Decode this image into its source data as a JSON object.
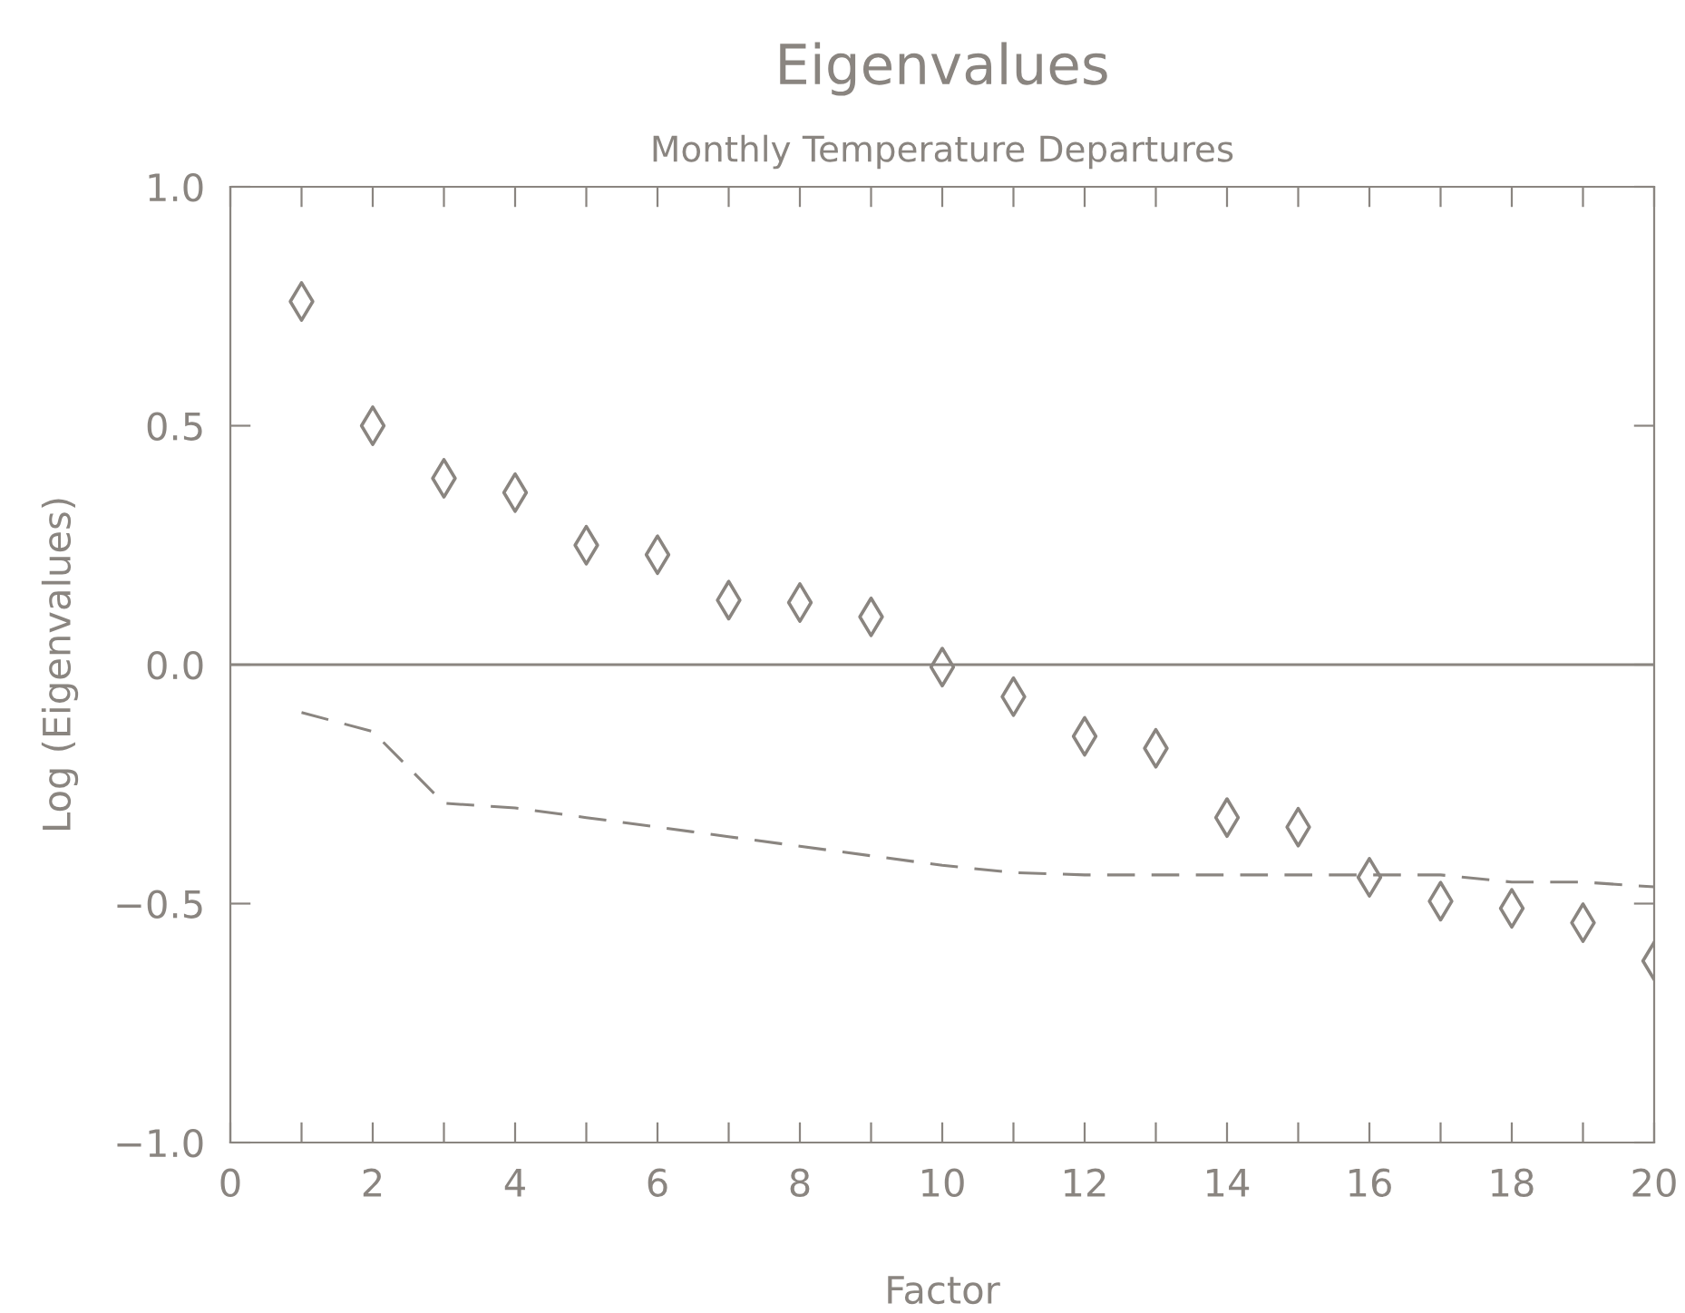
{
  "chart_data": {
    "type": "scatter",
    "title": "Eigenvalues",
    "subtitle": "Monthly Temperature Departures",
    "xlabel": "Factor",
    "ylabel": "Log (Eigenvalues)",
    "series": [
      {
        "marker": "diamond",
        "color": "#8a8580",
        "x": [
          1,
          2,
          3,
          4,
          5,
          6,
          7,
          8,
          9,
          10,
          11,
          12,
          13,
          14,
          15,
          16,
          17,
          18,
          19,
          20
        ],
        "values": [
          0.76,
          0.5,
          0.39,
          0.36,
          0.25,
          0.23,
          0.135,
          0.13,
          0.1,
          -0.005,
          -0.067,
          -0.15,
          -0.175,
          -0.32,
          -0.34,
          -0.445,
          -0.495,
          -0.51,
          -0.54,
          -0.62
        ]
      },
      {
        "type": "line",
        "line_style": "dashed",
        "marker": "none",
        "color": "#8a8580",
        "x": [
          1,
          2,
          3,
          4,
          5,
          6,
          7,
          8,
          9,
          10,
          11,
          12,
          13,
          14,
          15,
          16,
          17,
          18,
          19,
          20
        ],
        "values": [
          -0.1,
          -0.14,
          -0.29,
          -0.3,
          -0.32,
          -0.34,
          -0.36,
          -0.38,
          -0.4,
          -0.42,
          -0.435,
          -0.44,
          -0.44,
          -0.44,
          -0.44,
          -0.44,
          -0.44,
          -0.455,
          -0.455,
          -0.465
        ]
      }
    ],
    "xlim": [
      0,
      20
    ],
    "ylim": [
      -1.0,
      1.0
    ],
    "xticks": [
      0,
      {
        "value": 1,
        "label": null
      },
      2,
      {
        "value": 3,
        "label": null
      },
      4,
      {
        "value": 5,
        "label": null
      },
      6,
      {
        "value": 7,
        "label": null
      },
      8,
      {
        "value": 9,
        "label": null
      },
      10,
      {
        "value": 11,
        "label": null
      },
      12,
      {
        "value": 13,
        "label": null
      },
      14,
      {
        "value": 15,
        "label": null
      },
      16,
      {
        "value": 17,
        "label": null
      },
      18,
      {
        "value": 19,
        "label": null
      },
      20
    ],
    "yticks": [
      {
        "value": -1.0,
        "label": "−1.0"
      },
      {
        "value": -0.5,
        "label": "−0.5"
      },
      {
        "value": 0.0,
        "label": "0.0"
      },
      {
        "value": 0.5,
        "label": "0.5"
      },
      {
        "value": 1.0,
        "label": "1.0"
      }
    ],
    "ref_lines": [
      {
        "axis": "y",
        "value": 0.0,
        "color": "#8a8580",
        "line_style": "solid"
      }
    ],
    "grid": false,
    "legend": false
  }
}
